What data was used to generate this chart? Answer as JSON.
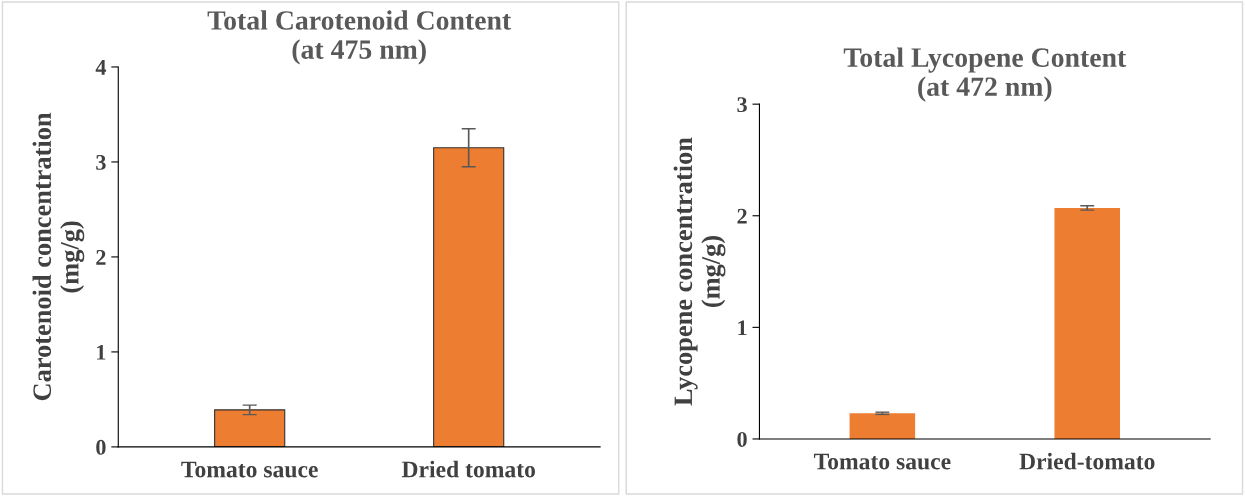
{
  "chart_data": [
    {
      "type": "bar",
      "title": "Total Carotenoid Content\n(at 475 nm)",
      "ylabel": "Carotenoid concentration\n(mg/g)",
      "categories": [
        "Tomato sauce",
        "Dried tomato"
      ],
      "values": [
        0.39,
        3.15
      ],
      "errors": [
        0.05,
        0.2
      ],
      "color": "#ed7d31",
      "ylim": [
        0,
        4
      ],
      "yticks": [
        0,
        1,
        2,
        3,
        4
      ],
      "grid": false,
      "legend": false
    },
    {
      "type": "bar",
      "title": "Total Lycopene Content\n(at 472 nm)",
      "ylabel": "Lycopene concentration\n(mg/g)",
      "categories": [
        "Tomato sauce",
        "Dried-tomato"
      ],
      "values": [
        0.23,
        2.07
      ],
      "errors": [
        0.01,
        0.02
      ],
      "color": "#ed7d31",
      "ylim": [
        0,
        3
      ],
      "yticks": [
        0,
        1,
        2,
        3
      ],
      "grid": false,
      "legend": false
    }
  ]
}
